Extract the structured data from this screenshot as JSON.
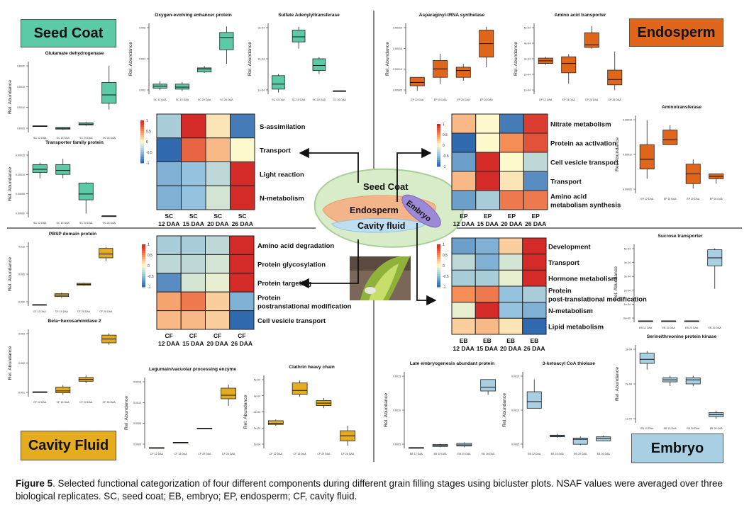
{
  "components": {
    "seed_coat": {
      "label": "Seed Coat",
      "color": "#5cc9a7"
    },
    "endosperm": {
      "label": "Endosperm",
      "color": "#e0661b"
    },
    "cavity_fluid": {
      "label": "Cavity Fluid",
      "color": "#e4ac1e"
    },
    "embryo": {
      "label": "Embryo",
      "color": "#a9cfe2"
    }
  },
  "center_labels": {
    "seed_coat": "Seed Coat",
    "endosperm": "Endosperm",
    "embryo": "Embryo",
    "cavity_fluid": "Cavity fluid"
  },
  "caption": {
    "figure_number": "Figure 5",
    "text": "Selected functional categorization of four different components during different grain filling stages using bicluster plots. NSAF values were averaged over three biological replicates. SC, seed coat; EB, embryo; EP, endosperm; CF, cavity fluid."
  },
  "legend_ticks": [
    "1",
    "0.5",
    "0",
    "-0.5",
    "-1"
  ],
  "chart_data": [
    {
      "type": "heatmap",
      "component": "seed_coat",
      "columns": [
        "SC 12 DAA",
        "SC 15 DAA",
        "SC 20 DAA",
        "SC 26 DAA"
      ],
      "rows": [
        "S-assimilation",
        "Transport",
        "Light reaction",
        "N-metabolism"
      ],
      "values": [
        [
          -0.4,
          1.0,
          0.1,
          -0.9
        ],
        [
          -1.0,
          0.7,
          0.3,
          0.0
        ],
        [
          -0.6,
          -0.5,
          -0.3,
          1.0
        ],
        [
          -0.6,
          -0.5,
          -0.2,
          1.0
        ]
      ]
    },
    {
      "type": "heatmap",
      "component": "endosperm",
      "columns": [
        "EP 12 DAA",
        "EP 15 DAA",
        "EP 20 DAA",
        "EP 26 DAA"
      ],
      "rows": [
        "Nitrate metabolism",
        "Protein aa activation",
        "Cell vesicle transport",
        "Transport",
        "Amino acid metabolism synthesis"
      ],
      "values": [
        [
          0.3,
          0.0,
          -0.9,
          0.9
        ],
        [
          -1.0,
          0.0,
          0.5,
          0.8
        ],
        [
          -0.7,
          1.0,
          0.0,
          -0.3
        ],
        [
          0.3,
          1.0,
          0.1,
          -0.8
        ],
        [
          -0.7,
          -0.4,
          0.6,
          0.6
        ]
      ]
    },
    {
      "type": "heatmap",
      "component": "cavity_fluid",
      "columns": [
        "CF 12 DAA",
        "CF 15 DAA",
        "CF 20 DAA",
        "CF 26 DAA"
      ],
      "rows": [
        "Amino acid degradation",
        "Protein glycosylation",
        "Protein targeting",
        "Protein postranslational modification",
        "Cell vesicle transport"
      ],
      "values": [
        [
          -0.4,
          -0.4,
          -0.3,
          1.0
        ],
        [
          -0.3,
          -0.3,
          -0.2,
          1.0
        ],
        [
          -0.8,
          -0.2,
          -0.1,
          1.0
        ],
        [
          0.4,
          0.6,
          0.2,
          -0.6
        ],
        [
          0.3,
          0.3,
          0.2,
          -1.0
        ]
      ]
    },
    {
      "type": "heatmap",
      "component": "embryo",
      "columns": [
        "EB 12 DAA",
        "EB 15 DAA",
        "EB 20 DAA",
        "EB 26 DAA"
      ],
      "rows": [
        "Development",
        "Transport",
        "Hormone metabolism",
        "Protein post-translational modification",
        "N-metabolism",
        "Lipid metabolism"
      ],
      "values": [
        [
          -0.7,
          -0.6,
          0.2,
          1.0
        ],
        [
          -0.3,
          -0.6,
          -0.2,
          1.0
        ],
        [
          -0.4,
          -0.4,
          -0.1,
          1.0
        ],
        [
          0.5,
          0.6,
          -0.5,
          -0.4
        ],
        [
          -0.1,
          1.0,
          -0.5,
          -0.6
        ],
        [
          0.2,
          0.3,
          0.1,
          -1.0
        ]
      ]
    },
    {
      "type": "box",
      "component": "seed_coat",
      "title": "Glutamate dehydrogenase",
      "ylabel": "Rel. Abundance",
      "categories": [
        "SC 12 DAA",
        "SC 15 DAA",
        "SC 20 DAA",
        "SC 26 DAA"
      ],
      "yticks": [
        "0.0020",
        "0.0015",
        "0.0010",
        "0.0005"
      ],
      "boxes": [
        {
          "q1": 0.00055,
          "med": 0.00055,
          "q3": 0.00056,
          "lo": 0.00055,
          "hi": 0.00056
        },
        {
          "q1": 0.00048,
          "med": 0.0005,
          "q3": 0.00052,
          "lo": 0.00046,
          "hi": 0.00053
        },
        {
          "q1": 0.00058,
          "med": 0.0006,
          "q3": 0.00063,
          "lo": 0.00056,
          "hi": 0.00065
        },
        {
          "q1": 0.0011,
          "med": 0.0013,
          "q3": 0.0016,
          "lo": 0.00095,
          "hi": 0.002
        }
      ],
      "ylim": [
        0.0004,
        0.0021
      ]
    },
    {
      "type": "box",
      "component": "seed_coat",
      "title": "Transporter family protein",
      "ylabel": "Rel. Abundance",
      "categories": [
        "SC 12 DAA",
        "SC 15 DAA",
        "SC 20 DAA",
        "SC 26 DAA"
      ],
      "yticks": [
        "0.00015",
        "0.00010",
        "0.00005",
        "0.00000"
      ],
      "boxes": [
        {
          "q1": 0.000115,
          "med": 0.000123,
          "q3": 0.000135,
          "lo": 0.0001,
          "hi": 0.00014
        },
        {
          "q1": 0.00011,
          "med": 0.00012,
          "q3": 0.000135,
          "lo": 0.0001,
          "hi": 0.00015
        },
        {
          "q1": 4.5e-05,
          "med": 6e-05,
          "q3": 8.8e-05,
          "lo": 1e-05,
          "hi": 9e-05
        },
        {
          "q1": 4e-06,
          "med": 4e-06,
          "q3": 4e-06,
          "lo": 4e-06,
          "hi": 4e-06
        }
      ],
      "ylim": [
        0,
        0.00017
      ]
    },
    {
      "type": "box",
      "component": "seed_coat",
      "title": "Oxygen-evolving enhancer protein",
      "ylabel": "Rel. Abundance",
      "categories": [
        "SC 12 DAA",
        "SC 15 DAA",
        "SC 20 DAA",
        "SC 26 DAA"
      ],
      "yticks": [
        "0.006",
        "0.004",
        "0.002"
      ],
      "boxes": [
        {
          "q1": 0.0011,
          "med": 0.0013,
          "q3": 0.0015,
          "lo": 0.0009,
          "hi": 0.0018
        },
        {
          "q1": 0.001,
          "med": 0.0012,
          "q3": 0.0015,
          "lo": 0.0008,
          "hi": 0.0017
        },
        {
          "q1": 0.0027,
          "med": 0.003,
          "q3": 0.0031,
          "lo": 0.0026,
          "hi": 0.0033
        },
        {
          "q1": 0.0049,
          "med": 0.0061,
          "q3": 0.0066,
          "lo": 0.0035,
          "hi": 0.0072
        }
      ],
      "ylim": [
        0.0005,
        0.0075
      ]
    },
    {
      "type": "box",
      "component": "seed_coat",
      "title": "Sulfate Adenylyltransferase",
      "ylabel": "Rel. Abundance",
      "categories": [
        "SC 12 DAA",
        "SC 15 DAA",
        "SC 20 DAA",
        "SC 26 DAA"
      ],
      "yticks": [
        "3e-04",
        "2e-04",
        "1e-04"
      ],
      "boxes": [
        {
          "q1": 3e-05,
          "med": 6e-05,
          "q3": 0.00011,
          "lo": 1e-05,
          "hi": 0.00012
        },
        {
          "q1": 0.00031,
          "med": 0.00034,
          "q3": 0.00038,
          "lo": 0.00027,
          "hi": 0.0004
        },
        {
          "q1": 0.00014,
          "med": 0.00017,
          "q3": 0.00021,
          "lo": 0.00012,
          "hi": 0.00022
        },
        {
          "q1": 2e-05,
          "med": 2e-05,
          "q3": 2e-05,
          "lo": 2e-05,
          "hi": 2e-05
        }
      ],
      "ylim": [
        0,
        0.00042
      ]
    },
    {
      "type": "box",
      "component": "endosperm",
      "title": "Asparaginyl-tRNA synthetase",
      "ylabel": "Rel. Abundance",
      "categories": [
        "EP 12 DAA",
        "EP 15 DAA",
        "EP 20 DAA",
        "EP 26 DAA"
      ],
      "yticks": [
        "0.00020",
        "0.00015",
        "0.00010",
        "0.00005"
      ],
      "boxes": [
        {
          "q1": 4.5e-05,
          "med": 5.5e-05,
          "q3": 7e-05,
          "lo": 3e-05,
          "hi": 7e-05
        },
        {
          "q1": 7e-05,
          "med": 9.5e-05,
          "q3": 0.00012,
          "lo": 5e-05,
          "hi": 0.00014
        },
        {
          "q1": 7e-05,
          "med": 9e-05,
          "q3": 0.0001,
          "lo": 6e-05,
          "hi": 0.00011
        },
        {
          "q1": 0.00013,
          "med": 0.00017,
          "q3": 0.00021,
          "lo": 0.0001,
          "hi": 0.00022
        }
      ],
      "ylim": [
        2e-05,
        0.00023
      ]
    },
    {
      "type": "box",
      "component": "endosperm",
      "title": "Amino acid transporter",
      "ylabel": "Rel. Abundance",
      "categories": [
        "EP 12 DAA",
        "EP 15 DAA",
        "EP 20 DAA",
        "EP 26 DAA"
      ],
      "yticks": [
        "5e-04",
        "4e-04",
        "3e-04",
        "2e-04",
        "1e-04"
      ],
      "boxes": [
        {
          "q1": 0.00026,
          "med": 0.00028,
          "q3": 0.0003,
          "lo": 0.00025,
          "hi": 0.00031
        },
        {
          "q1": 0.00019,
          "med": 0.00026,
          "q3": 0.00031,
          "lo": 0.00011,
          "hi": 0.00033
        },
        {
          "q1": 0.00038,
          "med": 0.0004,
          "q3": 0.00049,
          "lo": 0.00037,
          "hi": 0.00054
        },
        {
          "q1": 0.0001,
          "med": 0.00014,
          "q3": 0.00021,
          "lo": 6e-05,
          "hi": 0.00035
        }
      ],
      "ylim": [
        3e-05,
        0.00056
      ]
    },
    {
      "type": "box",
      "component": "endosperm",
      "title": "Aminotransferase",
      "ylabel": "Rel. Abundance",
      "categories": [
        "EP 12 DAA",
        "EP 15 DAA",
        "EP 20 DAA",
        "EP 26 DAA"
      ],
      "yticks": [
        "0.00015",
        "0.00010",
        "0.00005"
      ],
      "boxes": [
        {
          "q1": 7e-05,
          "med": 9e-05,
          "q3": 0.00012,
          "lo": 5e-05,
          "hi": 0.00017
        },
        {
          "q1": 0.00012,
          "med": 0.00013,
          "q3": 0.00015,
          "lo": 0.00012,
          "hi": 0.00016
        },
        {
          "q1": 4e-05,
          "med": 6e-05,
          "q3": 8e-05,
          "lo": 3e-05,
          "hi": 9e-05
        },
        {
          "q1": 5e-05,
          "med": 5.5e-05,
          "q3": 6e-05,
          "lo": 4e-05,
          "hi": 6e-05
        }
      ],
      "ylim": [
        2e-05,
        0.00018
      ]
    },
    {
      "type": "box",
      "component": "cavity_fluid",
      "title": "PBSP domain protein",
      "ylabel": "Rel. Abundance",
      "categories": [
        "CF 12 DAA",
        "CF 15 DAA",
        "CF 20 DAA",
        "CF 26 DAA"
      ],
      "yticks": [
        "0.010",
        "0.005",
        "0.000"
      ],
      "boxes": [
        {
          "q1": 0.0003,
          "med": 0.0003,
          "q3": 0.0003,
          "lo": 0.0003,
          "hi": 0.0003
        },
        {
          "q1": 0.002,
          "med": 0.0023,
          "q3": 0.0026,
          "lo": 0.0018,
          "hi": 0.0028
        },
        {
          "q1": 0.0044,
          "med": 0.0046,
          "q3": 0.0048,
          "lo": 0.0043,
          "hi": 0.0049
        },
        {
          "q1": 0.0102,
          "med": 0.011,
          "q3": 0.0122,
          "lo": 0.0095,
          "hi": 0.0125
        }
      ],
      "ylim": [
        0,
        0.0135
      ]
    },
    {
      "type": "box",
      "component": "cavity_fluid",
      "title": "Beta−hexosaminidase 2",
      "ylabel": "Rel. Abundance",
      "categories": [
        "CF 12 DAA",
        "CF 15 DAA",
        "CF 20 DAA",
        "CF 26 DAA"
      ],
      "yticks": [
        "0.003",
        "0.002",
        "0.001"
      ],
      "boxes": [
        {
          "q1": 0.00055,
          "med": 0.00055,
          "q3": 0.00055,
          "lo": 0.00055,
          "hi": 0.00055
        },
        {
          "q1": 0.0005,
          "med": 0.0006,
          "q3": 0.0008,
          "lo": 0.0004,
          "hi": 0.0009
        },
        {
          "q1": 0.0011,
          "med": 0.0012,
          "q3": 0.0013,
          "lo": 0.001,
          "hi": 0.0014
        },
        {
          "q1": 0.0031,
          "med": 0.0033,
          "q3": 0.0035,
          "lo": 0.003,
          "hi": 0.0036
        }
      ],
      "ylim": [
        0.0003,
        0.0038
      ]
    },
    {
      "type": "box",
      "component": "cavity_fluid",
      "title": "Legumain/vacuolar processing enzyme",
      "ylabel": "Rel. Abundance",
      "categories": [
        "CF 12 DAA",
        "CF 15 DAA",
        "CF 20 DAA",
        "CF 26 DAA"
      ],
      "yticks": [
        "0.0015",
        "0.0010",
        "0.0005",
        "0.0000"
      ],
      "boxes": [
        {
          "q1": 2e-05,
          "med": 2e-05,
          "q3": 2e-05,
          "lo": 2e-05,
          "hi": 2e-05
        },
        {
          "q1": 0.00017,
          "med": 0.00017,
          "q3": 0.00017,
          "lo": 0.00017,
          "hi": 0.00017
        },
        {
          "q1": 0.00055,
          "med": 0.00056,
          "q3": 0.00057,
          "lo": 0.00055,
          "hi": 0.00057
        },
        {
          "q1": 0.0014,
          "med": 0.0015,
          "q3": 0.0017,
          "lo": 0.0012,
          "hi": 0.0018
        }
      ],
      "ylim": [
        0,
        0.002
      ]
    },
    {
      "type": "box",
      "component": "cavity_fluid",
      "title": "Clathrin heavy chain",
      "ylabel": "Rel. Abundance",
      "categories": [
        "CF 12 DAA",
        "CF 15 DAA",
        "CF 20 DAA",
        "CF 26 DAA"
      ],
      "yticks": [
        "5e-04",
        "4e-04",
        "3e-04",
        "2e-04",
        "1e-04"
      ],
      "boxes": [
        {
          "q1": 0.00021,
          "med": 0.00022,
          "q3": 0.00024,
          "lo": 0.0002,
          "hi": 0.00025
        },
        {
          "q1": 0.00045,
          "med": 0.00048,
          "q3": 0.00054,
          "lo": 0.00043,
          "hi": 0.00056
        },
        {
          "q1": 0.00036,
          "med": 0.00038,
          "q3": 0.0004,
          "lo": 0.00034,
          "hi": 0.00042
        },
        {
          "q1": 8e-05,
          "med": 0.00012,
          "q3": 0.00016,
          "lo": 4e-05,
          "hi": 0.0002
        }
      ],
      "ylim": [
        2e-05,
        0.0006
      ]
    },
    {
      "type": "box",
      "component": "embryo",
      "title": "Sucrose transporter",
      "ylabel": "Rel. Abundance",
      "categories": [
        "EB 12 DAA",
        "EB 15 DAA",
        "EB 20 DAA",
        "EB 26 DAA"
      ],
      "yticks": [
        "5e-04",
        "4e-04",
        "3e-04",
        "2e-04",
        "1e-04",
        "0e+00"
      ],
      "boxes": [
        {
          "q1": 1e-05,
          "med": 1e-05,
          "q3": 1e-05,
          "lo": 1e-05,
          "hi": 1e-05
        },
        {
          "q1": 1e-05,
          "med": 1e-05,
          "q3": 1e-05,
          "lo": 1e-05,
          "hi": 1e-05
        },
        {
          "q1": 1e-05,
          "med": 1e-05,
          "q3": 1e-05,
          "lo": 1e-05,
          "hi": 1e-05
        },
        {
          "q1": 0.00042,
          "med": 0.00048,
          "q3": 0.00054,
          "lo": 0.00025,
          "hi": 0.00055
        }
      ],
      "ylim": [
        0,
        0.00058
      ]
    },
    {
      "type": "box",
      "component": "embryo",
      "title": "Serine/threonine protein kinase",
      "ylabel": "Rel. Abundance",
      "categories": [
        "EB 12 DAA",
        "EB 15 DAA",
        "EB 20 DAA",
        "EB 26 DAA"
      ],
      "yticks": [
        "3e-04",
        "2e-04",
        "1e-04"
      ],
      "boxes": [
        {
          "q1": 0.00031,
          "med": 0.00033,
          "q3": 0.00036,
          "lo": 0.00028,
          "hi": 0.00037
        },
        {
          "q1": 0.00022,
          "med": 0.00023,
          "q3": 0.00024,
          "lo": 0.0002,
          "hi": 0.00025
        },
        {
          "q1": 0.00021,
          "med": 0.00023,
          "q3": 0.00024,
          "lo": 0.0002,
          "hi": 0.00025
        },
        {
          "q1": 5e-05,
          "med": 6e-05,
          "q3": 7e-05,
          "lo": 4e-05,
          "hi": 8e-05
        }
      ],
      "ylim": [
        2e-05,
        0.0004
      ]
    },
    {
      "type": "box",
      "component": "embryo",
      "title": "Late embryogenesis abundant protein",
      "ylabel": "Rel. Abundance",
      "categories": [
        "EB 12 DAA",
        "EB 15 DAA",
        "EB 20 DAA",
        "EB 26 DAA"
      ],
      "yticks": [
        "0.0015",
        "0.0010",
        "0.0005"
      ],
      "boxes": [
        {
          "q1": 2e-05,
          "med": 2e-05,
          "q3": 2e-05,
          "lo": 2e-05,
          "hi": 2e-05
        },
        {
          "q1": 5e-05,
          "med": 8e-05,
          "q3": 0.0001,
          "lo": 3e-05,
          "hi": 0.00012
        },
        {
          "q1": 6e-05,
          "med": 9e-05,
          "q3": 0.00013,
          "lo": 3e-05,
          "hi": 0.00016
        },
        {
          "q1": 0.0015,
          "med": 0.0016,
          "q3": 0.0018,
          "lo": 0.0014,
          "hi": 0.0018
        }
      ],
      "ylim": [
        0,
        0.002
      ]
    },
    {
      "type": "box",
      "component": "embryo",
      "title": "3-ketoacyl CoA thiolase",
      "ylabel": "Rel. Abundance",
      "categories": [
        "EB 12 DAA",
        "EB 15 DAA",
        "EB 20 DAA",
        "EB 26 DAA"
      ],
      "yticks": [
        "0.0015",
        "0.0010",
        "0.0005"
      ],
      "boxes": [
        {
          "q1": 0.00102,
          "med": 0.00118,
          "q3": 0.00142,
          "lo": 0.00102,
          "hi": 0.00172
        },
        {
          "q1": 0.00033,
          "med": 0.00035,
          "q3": 0.00037,
          "lo": 0.00031,
          "hi": 0.0004
        },
        {
          "q1": 0.00015,
          "med": 0.00027,
          "q3": 0.0003,
          "lo": 0.00013,
          "hi": 0.00034
        },
        {
          "q1": 0.00023,
          "med": 0.00029,
          "q3": 0.00033,
          "lo": 0.00022,
          "hi": 0.00036
        }
      ],
      "ylim": [
        5e-05,
        0.0019
      ]
    }
  ]
}
